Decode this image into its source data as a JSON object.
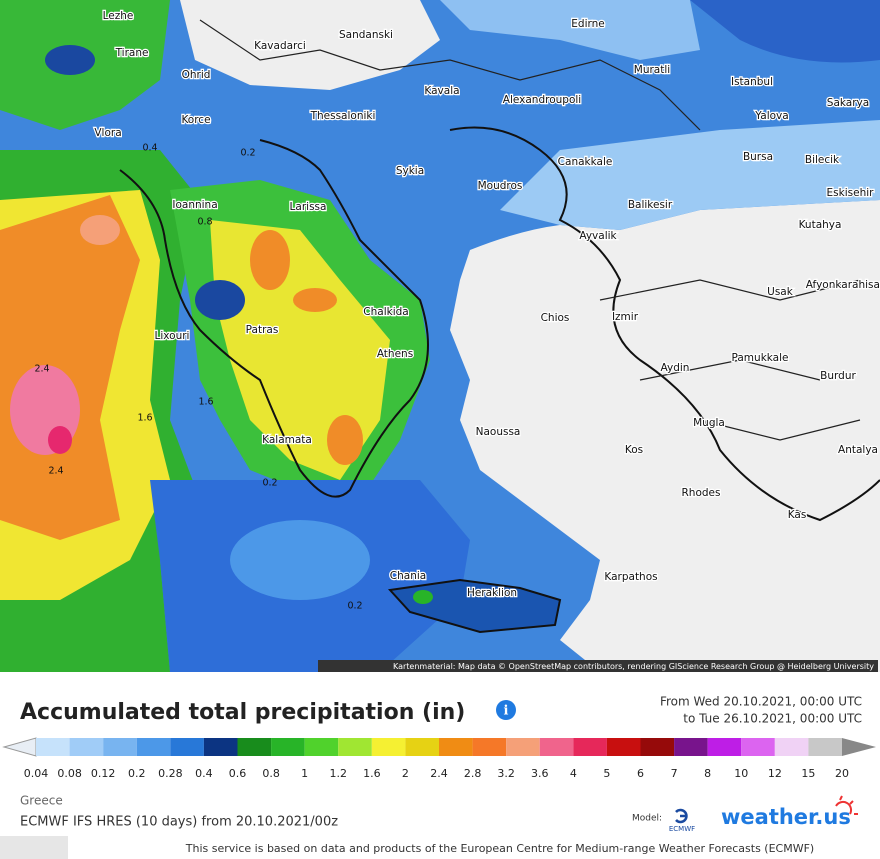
{
  "map": {
    "place_labels": [
      "Lezhe",
      "Tirane",
      "Ohrid",
      "Korce",
      "Vlora",
      "Kavadarci",
      "Sandanski",
      "Edirne",
      "Muratli",
      "Istanbul",
      "Sakarya",
      "Yalova",
      "Kavala",
      "Alexandroupoli",
      "Thessaloniki",
      "Bursa",
      "Bilecik",
      "Canakkale",
      "Sykia",
      "Moudros",
      "Eskisehir",
      "Balikesir",
      "Ioannina",
      "Larissa",
      "Kutahya",
      "Ayvalik",
      "Usak",
      "Afyonkarahisar",
      "Chalkida",
      "Chios",
      "Izmir",
      "Patras",
      "Lixouri",
      "Athens",
      "Pamukkale",
      "Aydin",
      "Burdur",
      "Mugla",
      "Naoussa",
      "Kalamata",
      "Kos",
      "Antalya",
      "Rhodes",
      "Kas",
      "Karpathos",
      "Chania",
      "Heraklion"
    ],
    "contour_labels": [
      2.4,
      2.4,
      1.6,
      1.6,
      0.8,
      0.4,
      0.2,
      0.2,
      0.2
    ],
    "attribution": "Kartenmaterial: Map data © OpenStreetMap contributors, rendering GIScience Research Group @ Heidelberg University"
  },
  "legend": {
    "title": "Accumulated total precipitation (in)",
    "period_from": "From Wed 20.10.2021, 00:00 UTC",
    "period_to": "to Tue 26.10.2021, 00:00 UTC",
    "ticks": [
      0.04,
      0.08,
      0.12,
      0.2,
      0.28,
      0.4,
      0.6,
      0.8,
      1,
      1.2,
      1.6,
      2,
      2.4,
      2.8,
      3.2,
      3.6,
      4,
      5,
      6,
      7,
      8,
      10,
      12,
      15,
      20
    ],
    "colors": [
      "#c6e2fb",
      "#a0ccf7",
      "#78b4f0",
      "#4c98e8",
      "#2878d8",
      "#0c3482",
      "#188c1c",
      "#28b428",
      "#50d22c",
      "#a0e632",
      "#f5f032",
      "#e6d214",
      "#f08c14",
      "#f57828",
      "#f5a078",
      "#f0648c",
      "#e6285a",
      "#c80f0f",
      "#960a0a",
      "#78148c",
      "#be1ee6",
      "#dc64f0",
      "#f0d2f5",
      "#c8c8c8"
    ]
  },
  "footer": {
    "region": "Greece",
    "model_run": "ECMWF IFS HRES (10 days) from 20.10.2021/00z",
    "model_label": "Model:",
    "model_logo": "ECMWF",
    "brand": "weather.us",
    "disclaimer": "This service is based on data and products of the European Centre for Medium-range Weather Forecasts (ECMWF)"
  }
}
